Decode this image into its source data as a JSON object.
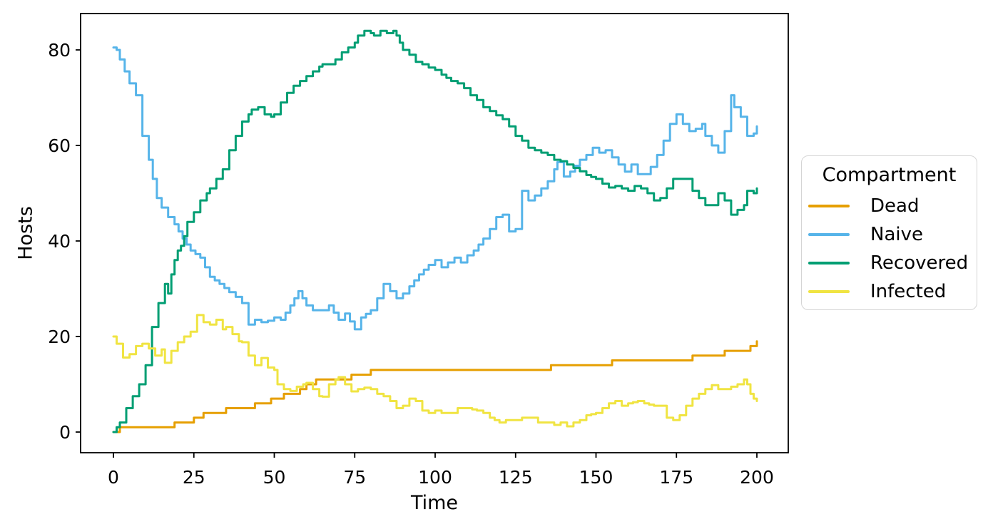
{
  "chart_data": {
    "type": "line",
    "title": "",
    "xlabel": "Time",
    "ylabel": "Hosts",
    "xlim": [
      -10,
      210
    ],
    "ylim": [
      -4.3,
      87.6
    ],
    "xticks": [
      0,
      25,
      50,
      75,
      100,
      125,
      150,
      175,
      200
    ],
    "yticks": [
      0,
      20,
      40,
      60,
      80
    ],
    "grid": false,
    "legend": {
      "title": "Compartment",
      "position": "right-outside"
    },
    "series": [
      {
        "name": "Dead",
        "color": "#E69F00",
        "style": "step",
        "points": [
          [
            0,
            0
          ],
          [
            2,
            1
          ],
          [
            19,
            2
          ],
          [
            25,
            3
          ],
          [
            28,
            4
          ],
          [
            35,
            5
          ],
          [
            44,
            6
          ],
          [
            49,
            7
          ],
          [
            53,
            8
          ],
          [
            58,
            9
          ],
          [
            60,
            10
          ],
          [
            63,
            11
          ],
          [
            74,
            12
          ],
          [
            80,
            13
          ],
          [
            136,
            14
          ],
          [
            155,
            15
          ],
          [
            180,
            16
          ],
          [
            190,
            17
          ],
          [
            198,
            18
          ],
          [
            200,
            19
          ]
        ]
      },
      {
        "name": "Naive",
        "color": "#56B4E9",
        "style": "jagged",
        "points": [
          [
            0,
            80.5
          ],
          [
            1,
            80
          ],
          [
            2,
            78
          ],
          [
            5,
            73
          ],
          [
            7,
            70.5
          ],
          [
            9,
            62
          ],
          [
            11,
            57
          ],
          [
            13.5,
            49
          ],
          [
            15,
            47
          ],
          [
            17,
            45
          ],
          [
            19,
            43.5
          ],
          [
            21.5,
            40.5
          ],
          [
            24,
            38
          ],
          [
            27,
            36.5
          ],
          [
            30,
            32.5
          ],
          [
            33,
            31
          ],
          [
            36,
            29.3
          ],
          [
            38,
            28.3
          ],
          [
            40,
            27
          ],
          [
            42,
            22.5
          ],
          [
            44,
            23.5
          ],
          [
            46,
            23
          ],
          [
            48,
            23.3
          ],
          [
            50,
            24
          ],
          [
            52,
            23.5
          ],
          [
            55,
            26.5
          ],
          [
            57.5,
            29.5
          ],
          [
            60,
            26.5
          ],
          [
            62,
            25.5
          ],
          [
            65,
            25.5
          ],
          [
            67,
            26.5
          ],
          [
            70,
            23.5
          ],
          [
            72,
            24.8
          ],
          [
            75,
            21.5
          ],
          [
            77,
            24
          ],
          [
            80,
            25.5
          ],
          [
            82,
            28
          ],
          [
            84,
            31
          ],
          [
            86,
            29.5
          ],
          [
            88,
            28
          ],
          [
            90,
            29
          ],
          [
            92,
            30.5
          ],
          [
            95,
            33
          ],
          [
            98,
            35
          ],
          [
            100,
            36
          ],
          [
            102,
            34.5
          ],
          [
            104,
            35.5
          ],
          [
            106,
            36.5
          ],
          [
            108,
            35.5
          ],
          [
            110,
            37
          ],
          [
            112,
            38
          ],
          [
            115,
            40.5
          ],
          [
            117,
            42.5
          ],
          [
            119,
            45
          ],
          [
            121,
            45.5
          ],
          [
            123,
            42
          ],
          [
            125,
            42.5
          ],
          [
            127,
            50.5
          ],
          [
            129,
            48.5
          ],
          [
            131,
            49.5
          ],
          [
            133,
            51
          ],
          [
            135,
            52.5
          ],
          [
            137,
            55
          ],
          [
            138,
            56.5
          ],
          [
            140,
            53.5
          ],
          [
            142,
            54.5
          ],
          [
            145,
            57
          ],
          [
            147,
            58
          ],
          [
            149,
            59.5
          ],
          [
            151,
            58.5
          ],
          [
            153,
            59
          ],
          [
            155,
            57.5
          ],
          [
            157,
            56
          ],
          [
            159,
            54.5
          ],
          [
            161,
            56
          ],
          [
            163,
            54
          ],
          [
            165,
            54
          ],
          [
            167,
            55.5
          ],
          [
            169,
            58
          ],
          [
            171,
            61
          ],
          [
            173,
            64.5
          ],
          [
            175,
            66.5
          ],
          [
            177,
            64.5
          ],
          [
            179,
            63
          ],
          [
            181,
            63.5
          ],
          [
            183,
            64.5
          ],
          [
            184,
            62
          ],
          [
            186,
            60
          ],
          [
            188,
            58.5
          ],
          [
            190,
            63
          ],
          [
            192,
            70.5
          ],
          [
            193,
            68
          ],
          [
            195,
            66
          ],
          [
            197,
            62
          ],
          [
            199,
            62.5
          ],
          [
            200,
            64
          ]
        ]
      },
      {
        "name": "Recovered",
        "color": "#009E73",
        "style": "jagged",
        "points": [
          [
            0,
            0
          ],
          [
            1,
            1
          ],
          [
            2,
            2
          ],
          [
            4,
            5
          ],
          [
            6,
            7.5
          ],
          [
            8,
            10
          ],
          [
            10,
            14
          ],
          [
            12,
            22
          ],
          [
            14,
            27
          ],
          [
            16,
            31
          ],
          [
            17,
            29
          ],
          [
            18,
            33
          ],
          [
            19,
            36
          ],
          [
            20,
            38
          ],
          [
            21,
            39
          ],
          [
            22,
            41
          ],
          [
            23,
            44
          ],
          [
            25,
            46
          ],
          [
            27,
            48.5
          ],
          [
            29,
            50
          ],
          [
            30,
            51
          ],
          [
            32,
            53
          ],
          [
            34,
            55
          ],
          [
            36,
            59
          ],
          [
            38,
            62
          ],
          [
            40,
            65
          ],
          [
            42,
            66.5
          ],
          [
            43,
            67.5
          ],
          [
            45,
            68
          ],
          [
            47,
            66.5
          ],
          [
            49,
            66
          ],
          [
            50,
            66.5
          ],
          [
            52,
            69
          ],
          [
            54,
            71
          ],
          [
            56,
            72.5
          ],
          [
            58,
            73.5
          ],
          [
            60,
            74.5
          ],
          [
            62,
            75.5
          ],
          [
            64,
            76.5
          ],
          [
            65,
            77
          ],
          [
            67,
            77
          ],
          [
            69,
            78
          ],
          [
            71,
            79.5
          ],
          [
            73,
            80.5
          ],
          [
            75,
            81.5
          ],
          [
            76,
            83
          ],
          [
            78,
            84
          ],
          [
            80,
            83.5
          ],
          [
            81,
            83
          ],
          [
            83,
            84
          ],
          [
            85,
            83.5
          ],
          [
            87,
            84
          ],
          [
            88,
            83
          ],
          [
            89,
            81.5
          ],
          [
            90,
            80
          ],
          [
            92,
            79
          ],
          [
            94,
            77.5
          ],
          [
            96,
            77
          ],
          [
            98,
            76.3
          ],
          [
            100,
            75.8
          ],
          [
            102,
            74.8
          ],
          [
            105,
            73.5
          ],
          [
            107,
            73
          ],
          [
            109,
            72
          ],
          [
            111,
            70.5
          ],
          [
            113,
            69.5
          ],
          [
            115,
            68
          ],
          [
            117,
            67.2
          ],
          [
            119,
            66.3
          ],
          [
            121,
            65.5
          ],
          [
            123,
            64
          ],
          [
            125,
            62
          ],
          [
            127,
            61
          ],
          [
            129,
            59.5
          ],
          [
            131,
            59
          ],
          [
            133,
            58.5
          ],
          [
            135,
            58
          ],
          [
            137,
            57
          ],
          [
            139,
            56.7
          ],
          [
            141,
            56
          ],
          [
            143,
            55.3
          ],
          [
            145,
            54.6
          ],
          [
            147,
            53.8
          ],
          [
            150,
            53
          ],
          [
            152,
            52
          ],
          [
            154,
            51.2
          ],
          [
            156,
            51.5
          ],
          [
            158,
            51
          ],
          [
            160,
            50.5
          ],
          [
            162,
            51.5
          ],
          [
            164,
            51
          ],
          [
            166,
            50
          ],
          [
            168,
            48.5
          ],
          [
            170,
            49
          ],
          [
            172,
            51
          ],
          [
            174,
            53
          ],
          [
            178,
            53
          ],
          [
            180,
            50.5
          ],
          [
            182,
            49
          ],
          [
            184,
            47.5
          ],
          [
            186,
            47.5
          ],
          [
            188,
            50
          ],
          [
            190,
            48.5
          ],
          [
            192,
            45.5
          ],
          [
            194,
            46.5
          ],
          [
            196,
            47.5
          ],
          [
            197,
            50.5
          ],
          [
            199,
            50
          ],
          [
            200,
            51
          ]
        ]
      },
      {
        "name": "Infected",
        "color": "#F0E442",
        "style": "jagged",
        "points": [
          [
            0,
            20
          ],
          [
            1,
            18.5
          ],
          [
            3,
            15.6
          ],
          [
            5,
            16.3
          ],
          [
            7,
            18
          ],
          [
            9,
            18.5
          ],
          [
            11,
            17.5
          ],
          [
            13,
            16
          ],
          [
            15,
            17.3
          ],
          [
            16,
            14.5
          ],
          [
            18,
            17
          ],
          [
            20,
            18.8
          ],
          [
            22,
            20
          ],
          [
            24,
            21
          ],
          [
            26,
            24.5
          ],
          [
            28,
            23
          ],
          [
            30,
            22.5
          ],
          [
            32,
            23.5
          ],
          [
            34,
            21.5
          ],
          [
            35,
            22
          ],
          [
            37,
            20.5
          ],
          [
            39,
            19
          ],
          [
            40,
            18.8
          ],
          [
            42,
            16
          ],
          [
            44,
            14
          ],
          [
            46,
            15.5
          ],
          [
            48,
            13.5
          ],
          [
            50,
            13
          ],
          [
            51,
            10
          ],
          [
            53,
            9
          ],
          [
            55,
            8.6
          ],
          [
            57,
            9.5
          ],
          [
            59,
            10
          ],
          [
            60,
            10.3
          ],
          [
            62,
            9
          ],
          [
            64,
            7.5
          ],
          [
            65,
            7.4
          ],
          [
            67,
            10
          ],
          [
            69,
            11
          ],
          [
            70,
            11.5
          ],
          [
            72,
            10
          ],
          [
            74,
            8.5
          ],
          [
            76,
            9
          ],
          [
            78,
            9.3
          ],
          [
            80,
            9
          ],
          [
            82,
            8
          ],
          [
            84,
            7.5
          ],
          [
            86,
            6.5
          ],
          [
            88,
            5
          ],
          [
            90,
            5.5
          ],
          [
            92,
            7
          ],
          [
            94,
            6.5
          ],
          [
            96,
            4.5
          ],
          [
            98,
            4
          ],
          [
            100,
            4.5
          ],
          [
            102,
            4
          ],
          [
            105,
            4
          ],
          [
            107,
            5
          ],
          [
            110,
            5
          ],
          [
            113,
            4.5
          ],
          [
            115,
            4
          ],
          [
            117,
            3
          ],
          [
            120,
            2
          ],
          [
            122,
            2.5
          ],
          [
            125,
            2.5
          ],
          [
            127,
            3
          ],
          [
            130,
            3
          ],
          [
            132,
            2
          ],
          [
            135,
            2
          ],
          [
            137,
            1.5
          ],
          [
            139,
            2
          ],
          [
            141,
            1.2
          ],
          [
            143,
            2
          ],
          [
            145,
            2.5
          ],
          [
            147,
            3.5
          ],
          [
            150,
            4
          ],
          [
            152,
            5
          ],
          [
            154,
            6
          ],
          [
            156,
            6.5
          ],
          [
            158,
            5.5
          ],
          [
            160,
            6
          ],
          [
            163,
            6.5
          ],
          [
            165,
            6
          ],
          [
            168,
            5.5
          ],
          [
            170,
            5.5
          ],
          [
            172,
            3
          ],
          [
            174,
            2.5
          ],
          [
            176,
            3.5
          ],
          [
            178,
            5.5
          ],
          [
            180,
            7
          ],
          [
            182,
            8
          ],
          [
            184,
            9
          ],
          [
            186,
            9.8
          ],
          [
            188,
            9
          ],
          [
            190,
            9
          ],
          [
            192,
            9.5
          ],
          [
            194,
            10
          ],
          [
            196,
            11
          ],
          [
            197,
            10
          ],
          [
            198,
            8
          ],
          [
            199,
            7
          ],
          [
            200,
            6.5
          ]
        ]
      }
    ]
  }
}
